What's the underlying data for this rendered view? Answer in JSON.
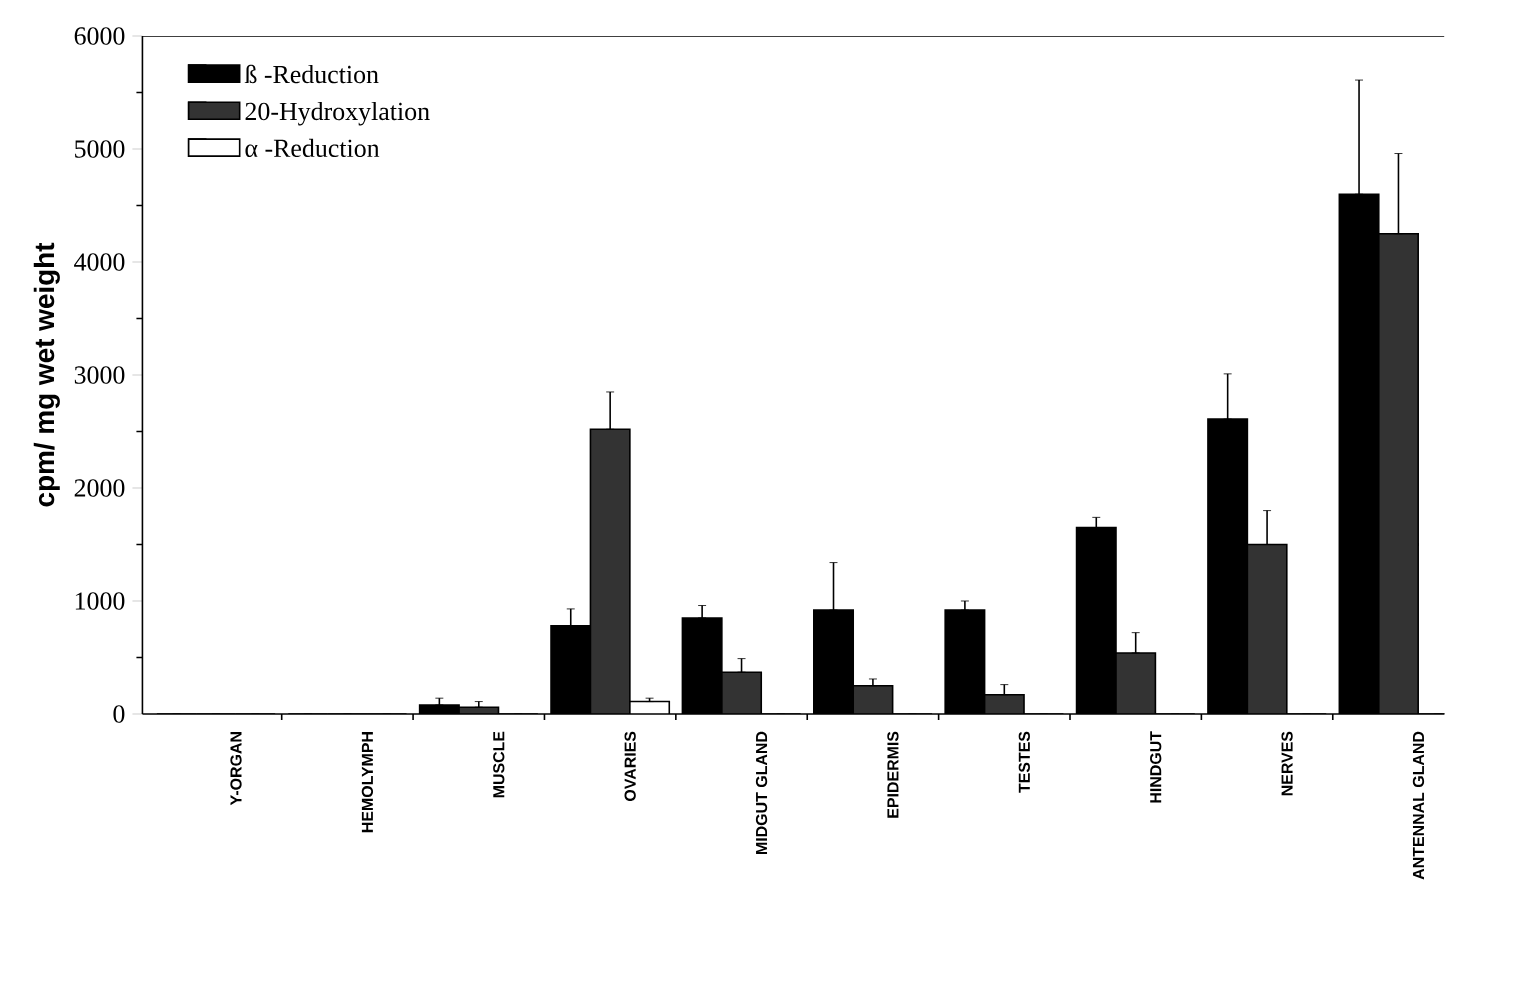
{
  "chart_data": {
    "type": "bar",
    "ylabel": "cpm/ mg wet weight",
    "categories": [
      "Y-ORGAN",
      "HEMOLYMPH",
      "MUSCLE",
      "OVARIES",
      "MIDGUT GLAND",
      "EPIDERMIS",
      "TESTES",
      "HINDGUT",
      "NERVES",
      "ANTENNAL GLAND"
    ],
    "series": [
      {
        "name": "ß -Reduction",
        "color": "#000000",
        "values": [
          0,
          0,
          80,
          780,
          850,
          920,
          920,
          1650,
          2610,
          4600
        ],
        "errors": [
          null,
          null,
          [
            80,
            140
          ],
          [
            780,
            930
          ],
          [
            850,
            960
          ],
          [
            920,
            1340
          ],
          [
            920,
            1000
          ],
          [
            1650,
            1740
          ],
          [
            2610,
            3010
          ],
          [
            4600,
            5610
          ]
        ]
      },
      {
        "name": "20-Hydroxylation",
        "color": "#333333",
        "values": [
          0,
          0,
          60,
          2520,
          370,
          250,
          170,
          540,
          1500,
          4250
        ],
        "errors": [
          null,
          null,
          [
            60,
            110
          ],
          [
            2520,
            2850
          ],
          [
            370,
            490
          ],
          [
            250,
            310
          ],
          [
            170,
            260
          ],
          [
            540,
            720
          ],
          [
            1500,
            1800
          ],
          [
            4250,
            4960
          ]
        ]
      },
      {
        "name": "α -Reduction",
        "color": "#ffffff",
        "values": [
          0,
          0,
          0,
          110,
          0,
          0,
          0,
          0,
          0,
          0
        ],
        "errors": [
          null,
          null,
          null,
          [
            110,
            140
          ],
          null,
          null,
          null,
          null,
          null,
          null
        ]
      }
    ],
    "ylim": [
      0,
      6000
    ],
    "yticks": [
      0,
      1000,
      2000,
      3000,
      4000,
      5000,
      6000
    ],
    "legend": "top left"
  }
}
